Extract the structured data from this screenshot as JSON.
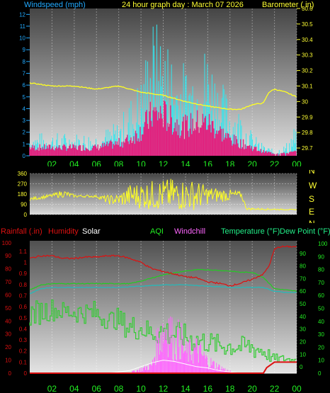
{
  "header": {
    "windspeed_label": "Windspeed (mph)",
    "title": "24 hour graph day : March 07 2026",
    "barometer_label": "Barometer ( in)"
  },
  "legend": {
    "rainfall": "Rainfall (.in)",
    "humidity": "Humidity",
    "solar": "Solar",
    "aqi": "AQI",
    "windchill": "Windchill",
    "temperature": "Temperature (°F)",
    "dewpoint": "Dew Point (°F)"
  },
  "colors": {
    "windspeed": "#33e6ee",
    "windgust": "#e0237f",
    "barometer": "#ffff22",
    "direction": "#ffff22",
    "humidity": "#dd1111",
    "temperature": "#22cc22",
    "dewpoint": "#22bbbb",
    "aqi": "#33cc33",
    "windchill": "#ff66ff",
    "solar": "#ffffff",
    "rainfall": "#dd1111",
    "axis_green": "#22ee22",
    "axis_cyan": "#22aaff",
    "axis_yellow": "#ffff33"
  },
  "chart_data": [
    {
      "type": "bar",
      "name_hint": "wind-barometer",
      "x_ticks": [
        "02",
        "04",
        "06",
        "08",
        "10",
        "12",
        "14",
        "16",
        "18",
        "20",
        "22",
        "00"
      ],
      "wind_axis": {
        "ylim": [
          0,
          12.5
        ],
        "ticks": [
          "0",
          "1",
          "2",
          "3",
          "4",
          "5",
          "6",
          "7",
          "8",
          "9",
          "10",
          "11",
          "12"
        ]
      },
      "baro_axis": {
        "ylim": [
          29.65,
          30.6
        ],
        "ticks": [
          "29.7",
          "29.8",
          "29.9",
          "30",
          "30.1",
          "30.2",
          "30.3",
          "30.4",
          "30.5",
          "30.6"
        ]
      },
      "barometer_series": [
        {
          "h": 0,
          "v": 30.12
        },
        {
          "h": 2,
          "v": 30.1
        },
        {
          "h": 4,
          "v": 30.1
        },
        {
          "h": 6,
          "v": 30.08
        },
        {
          "h": 8,
          "v": 30.1
        },
        {
          "h": 10,
          "v": 30.06
        },
        {
          "h": 12,
          "v": 30.04
        },
        {
          "h": 14,
          "v": 30.0
        },
        {
          "h": 16,
          "v": 29.97
        },
        {
          "h": 18,
          "v": 29.95
        },
        {
          "h": 19,
          "v": 29.95
        },
        {
          "h": 20,
          "v": 29.98
        },
        {
          "h": 21,
          "v": 29.99
        },
        {
          "h": 21.5,
          "v": 30.06
        },
        {
          "h": 22,
          "v": 30.08
        },
        {
          "h": 23,
          "v": 30.06
        },
        {
          "h": 24,
          "v": 30.03
        }
      ],
      "windspeed_envelope": [
        {
          "h": 0,
          "v": 2
        },
        {
          "h": 2,
          "v": 2
        },
        {
          "h": 4,
          "v": 2
        },
        {
          "h": 6,
          "v": 2
        },
        {
          "h": 8,
          "v": 3
        },
        {
          "h": 9,
          "v": 5
        },
        {
          "h": 10,
          "v": 7
        },
        {
          "h": 11,
          "v": 12
        },
        {
          "h": 12,
          "v": 11
        },
        {
          "h": 13,
          "v": 9
        },
        {
          "h": 14,
          "v": 8
        },
        {
          "h": 15,
          "v": 9
        },
        {
          "h": 16,
          "v": 10
        },
        {
          "h": 17,
          "v": 7
        },
        {
          "h": 18,
          "v": 5
        },
        {
          "h": 19,
          "v": 4
        },
        {
          "h": 20,
          "v": 2
        },
        {
          "h": 21,
          "v": 1
        },
        {
          "h": 22,
          "v": 0.5
        },
        {
          "h": 23,
          "v": 1
        },
        {
          "h": 24,
          "v": 3
        }
      ],
      "windgust_envelope": [
        {
          "h": 0,
          "v": 1
        },
        {
          "h": 2,
          "v": 1
        },
        {
          "h": 4,
          "v": 1
        },
        {
          "h": 6,
          "v": 1
        },
        {
          "h": 8,
          "v": 1.5
        },
        {
          "h": 9,
          "v": 2
        },
        {
          "h": 10,
          "v": 3
        },
        {
          "h": 11,
          "v": 5
        },
        {
          "h": 12,
          "v": 5
        },
        {
          "h": 13,
          "v": 4
        },
        {
          "h": 14,
          "v": 3.5
        },
        {
          "h": 15,
          "v": 4
        },
        {
          "h": 16,
          "v": 4
        },
        {
          "h": 17,
          "v": 3
        },
        {
          "h": 18,
          "v": 2
        },
        {
          "h": 19,
          "v": 1.5
        },
        {
          "h": 20,
          "v": 1
        },
        {
          "h": 21,
          "v": 0.5
        },
        {
          "h": 22,
          "v": 0.3
        },
        {
          "h": 23,
          "v": 0.3
        },
        {
          "h": 24,
          "v": 0.5
        }
      ]
    },
    {
      "type": "line",
      "name_hint": "wind-direction",
      "x_ticks": [
        "02",
        "04",
        "06",
        "08",
        "10",
        "12",
        "14",
        "16",
        "18",
        "20",
        "22",
        "00"
      ],
      "dir_axis": {
        "ylim": [
          0,
          360
        ],
        "ticks": [
          "0",
          "90",
          "180",
          "270",
          "360"
        ]
      },
      "compass": [
        "N",
        "W",
        "S",
        "E",
        "N"
      ],
      "direction_envelope": [
        {
          "h": 0,
          "lo": 120,
          "hi": 150
        },
        {
          "h": 2,
          "lo": 150,
          "hi": 180
        },
        {
          "h": 3,
          "lo": 150,
          "hi": 220
        },
        {
          "h": 4,
          "lo": 150,
          "hi": 175
        },
        {
          "h": 6,
          "lo": 150,
          "hi": 170
        },
        {
          "h": 7,
          "lo": 90,
          "hi": 170
        },
        {
          "h": 8,
          "lo": 80,
          "hi": 180
        },
        {
          "h": 9,
          "lo": 60,
          "hi": 270
        },
        {
          "h": 11,
          "lo": 40,
          "hi": 300
        },
        {
          "h": 13,
          "lo": 30,
          "hi": 320
        },
        {
          "h": 15,
          "lo": 40,
          "hi": 300
        },
        {
          "h": 16,
          "lo": 90,
          "hi": 250
        },
        {
          "h": 18,
          "lo": 120,
          "hi": 220
        },
        {
          "h": 19,
          "lo": 150,
          "hi": 200
        },
        {
          "h": 19.5,
          "lo": 40,
          "hi": 60
        },
        {
          "h": 24,
          "lo": 40,
          "hi": 45
        }
      ]
    },
    {
      "type": "line",
      "name_hint": "temperature-humidity",
      "x_ticks": [
        "02",
        "04",
        "06",
        "08",
        "10",
        "12",
        "14",
        "16",
        "18",
        "20",
        "22",
        "00"
      ],
      "left_pct_axis": {
        "ylim": [
          0,
          100
        ],
        "ticks": [
          "0",
          "10",
          "20",
          "30",
          "40",
          "50",
          "60",
          "70",
          "80",
          "90",
          "100"
        ]
      },
      "rain_axis": {
        "ylim": [
          0,
          1.1
        ],
        "ticks": [
          "0",
          "0.1",
          "0.2",
          "0.3",
          "0.4",
          "0.5",
          "0.6",
          "0.7",
          "0.8",
          "0.9",
          "1",
          "1.1"
        ]
      },
      "temp_axis": {
        "ylim": [
          -5,
          100
        ],
        "ticks": [
          "0",
          "10",
          "20",
          "30",
          "40",
          "50",
          "60",
          "70",
          "80",
          "90"
        ]
      },
      "far_axis": {
        "ticks": [
          "0",
          "10",
          "20",
          "30",
          "40",
          "50",
          "60",
          "70",
          "80",
          "90",
          "100"
        ]
      },
      "humidity_series": [
        {
          "h": 0,
          "v": 88
        },
        {
          "h": 1,
          "v": 90
        },
        {
          "h": 2,
          "v": 90
        },
        {
          "h": 3,
          "v": 88
        },
        {
          "h": 4,
          "v": 88
        },
        {
          "h": 5,
          "v": 89
        },
        {
          "h": 6,
          "v": 89
        },
        {
          "h": 7,
          "v": 90
        },
        {
          "h": 8,
          "v": 90
        },
        {
          "h": 9,
          "v": 88
        },
        {
          "h": 10,
          "v": 85
        },
        {
          "h": 11,
          "v": 80
        },
        {
          "h": 12,
          "v": 78
        },
        {
          "h": 13,
          "v": 76
        },
        {
          "h": 14,
          "v": 74
        },
        {
          "h": 15,
          "v": 73
        },
        {
          "h": 16,
          "v": 70
        },
        {
          "h": 17,
          "v": 69
        },
        {
          "h": 18,
          "v": 67
        },
        {
          "h": 19,
          "v": 69
        },
        {
          "h": 20,
          "v": 72
        },
        {
          "h": 21,
          "v": 76
        },
        {
          "h": 21.5,
          "v": 82
        },
        {
          "h": 22,
          "v": 95
        },
        {
          "h": 22.5,
          "v": 97
        },
        {
          "h": 24,
          "v": 97
        }
      ],
      "temperature_series": [
        {
          "h": 0,
          "v": 61
        },
        {
          "h": 1,
          "v": 65
        },
        {
          "h": 2,
          "v": 66
        },
        {
          "h": 4,
          "v": 66
        },
        {
          "h": 6,
          "v": 66
        },
        {
          "h": 8,
          "v": 66
        },
        {
          "h": 9,
          "v": 66
        },
        {
          "h": 10,
          "v": 68
        },
        {
          "h": 12,
          "v": 73
        },
        {
          "h": 14,
          "v": 76
        },
        {
          "h": 15,
          "v": 77
        },
        {
          "h": 16,
          "v": 77
        },
        {
          "h": 18,
          "v": 76
        },
        {
          "h": 19,
          "v": 75
        },
        {
          "h": 20,
          "v": 75
        },
        {
          "h": 21,
          "v": 71
        },
        {
          "h": 22,
          "v": 62
        },
        {
          "h": 23,
          "v": 61
        },
        {
          "h": 24,
          "v": 60
        }
      ],
      "dewpoint_series": [
        {
          "h": 0,
          "v": 58
        },
        {
          "h": 1,
          "v": 62
        },
        {
          "h": 2,
          "v": 63
        },
        {
          "h": 4,
          "v": 63
        },
        {
          "h": 6,
          "v": 63
        },
        {
          "h": 8,
          "v": 63
        },
        {
          "h": 10,
          "v": 64
        },
        {
          "h": 12,
          "v": 65
        },
        {
          "h": 14,
          "v": 65
        },
        {
          "h": 16,
          "v": 64
        },
        {
          "h": 18,
          "v": 63
        },
        {
          "h": 20,
          "v": 63
        },
        {
          "h": 21,
          "v": 63
        },
        {
          "h": 22,
          "v": 60
        },
        {
          "h": 23,
          "v": 59
        },
        {
          "h": 24,
          "v": 59
        }
      ],
      "aqi_envelope": [
        {
          "h": 0,
          "lo": 35,
          "hi": 55
        },
        {
          "h": 2,
          "lo": 40,
          "hi": 58
        },
        {
          "h": 3,
          "lo": 40,
          "hi": 55
        },
        {
          "h": 4,
          "lo": 38,
          "hi": 56
        },
        {
          "h": 5,
          "lo": 38,
          "hi": 55
        },
        {
          "h": 6,
          "lo": 36,
          "hi": 56
        },
        {
          "h": 7,
          "lo": 34,
          "hi": 48
        },
        {
          "h": 8,
          "lo": 33,
          "hi": 50
        },
        {
          "h": 9,
          "lo": 25,
          "hi": 45
        },
        {
          "h": 10,
          "lo": 25,
          "hi": 45
        },
        {
          "h": 11,
          "lo": 22,
          "hi": 40
        },
        {
          "h": 12,
          "lo": 20,
          "hi": 44
        },
        {
          "h": 13,
          "lo": 20,
          "hi": 40
        },
        {
          "h": 14,
          "lo": 18,
          "hi": 38
        },
        {
          "h": 15,
          "lo": 15,
          "hi": 35
        },
        {
          "h": 16,
          "lo": 15,
          "hi": 33
        },
        {
          "h": 17,
          "lo": 13,
          "hi": 30
        },
        {
          "h": 18,
          "lo": 12,
          "hi": 30
        },
        {
          "h": 19,
          "lo": 12,
          "hi": 28
        },
        {
          "h": 20,
          "lo": 10,
          "hi": 30
        },
        {
          "h": 21,
          "lo": 10,
          "hi": 25
        },
        {
          "h": 22,
          "lo": 7,
          "hi": 15
        },
        {
          "h": 23,
          "lo": 8,
          "hi": 14
        },
        {
          "h": 24,
          "lo": 8,
          "hi": 12
        }
      ],
      "windchill_envelope": [
        {
          "h": 9,
          "v": 1
        },
        {
          "h": 10,
          "v": 5
        },
        {
          "h": 11,
          "v": 10
        },
        {
          "h": 11.5,
          "v": 40
        },
        {
          "h": 12,
          "v": 55
        },
        {
          "h": 12.5,
          "v": 60
        },
        {
          "h": 13,
          "v": 35
        },
        {
          "h": 13.5,
          "v": 45
        },
        {
          "h": 14,
          "v": 25
        },
        {
          "h": 15,
          "v": 30
        },
        {
          "h": 16,
          "v": 15
        },
        {
          "h": 17,
          "v": 8
        },
        {
          "h": 18,
          "v": 2
        }
      ],
      "solar_series": [
        {
          "h": 0,
          "v": 0
        },
        {
          "h": 7,
          "v": 0
        },
        {
          "h": 8,
          "v": 1
        },
        {
          "h": 9,
          "v": 2
        },
        {
          "h": 10,
          "v": 5
        },
        {
          "h": 11,
          "v": 8
        },
        {
          "h": 12,
          "v": 10
        },
        {
          "h": 13,
          "v": 9
        },
        {
          "h": 14,
          "v": 7
        },
        {
          "h": 15,
          "v": 5
        },
        {
          "h": 16,
          "v": 4
        },
        {
          "h": 17,
          "v": 2
        },
        {
          "h": 18,
          "v": 1
        },
        {
          "h": 19,
          "v": 0
        },
        {
          "h": 24,
          "v": 0
        }
      ],
      "rainfall_series": [
        {
          "h": 0,
          "v": 0
        },
        {
          "h": 21,
          "v": 0
        },
        {
          "h": 21.3,
          "v": 0.05
        },
        {
          "h": 22,
          "v": 0.1
        },
        {
          "h": 22.5,
          "v": 0.1
        },
        {
          "h": 24,
          "v": 0.1
        }
      ]
    }
  ]
}
